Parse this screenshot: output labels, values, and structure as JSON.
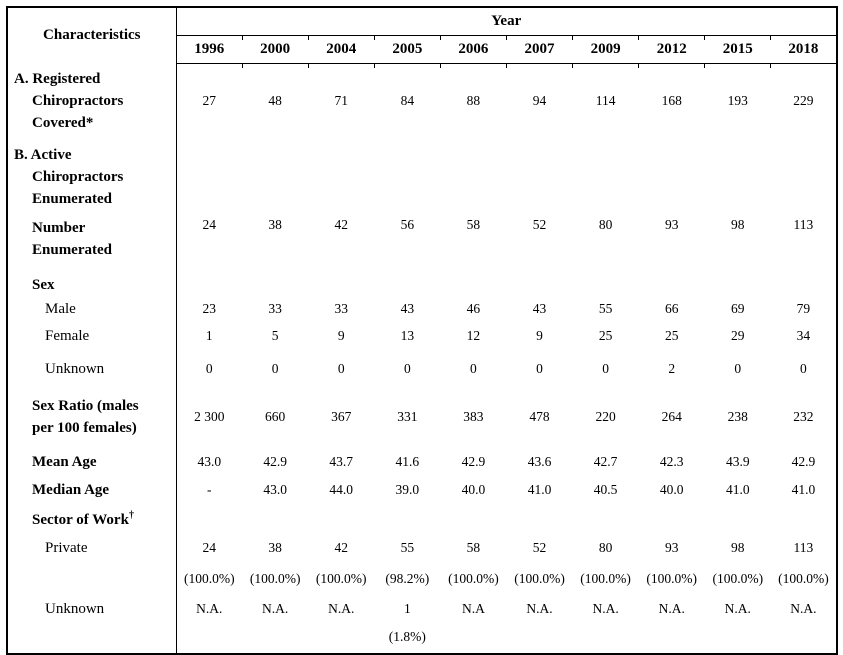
{
  "page": {
    "background_color": "#ffffff",
    "border_color": "#000000",
    "text_color": "#000000"
  },
  "table": {
    "characteristics_header": "Characteristics",
    "year_header": "Year",
    "years": [
      "1996",
      "2000",
      "2004",
      "2005",
      "2006",
      "2007",
      "2009",
      "2012",
      "2015",
      "2018"
    ],
    "rows": [
      {
        "id": "registered",
        "style": "section",
        "level": 0,
        "label_lines": [
          "A. Registered",
          "Chiropractors",
          "Covered*"
        ],
        "values": [
          "27",
          "48",
          "71",
          "84",
          "88",
          "94",
          "114",
          "168",
          "193",
          "229"
        ]
      },
      {
        "id": "active-header",
        "style": "section",
        "level": 0,
        "label_lines": [
          "B. Active",
          "Chiropractors",
          "Enumerated"
        ],
        "values": [
          "",
          "",
          "",
          "",
          "",
          "",
          "",
          "",
          "",
          ""
        ]
      },
      {
        "id": "number-enumerated",
        "style": "section",
        "level": 1,
        "label_lines": [
          "Number",
          "Enumerated"
        ],
        "values": [
          "24",
          "38",
          "42",
          "56",
          "58",
          "52",
          "80",
          "93",
          "98",
          "113"
        ]
      },
      {
        "id": "sex-header",
        "style": "section",
        "level": 1,
        "label_lines": [
          "Sex"
        ],
        "values": [
          "",
          "",
          "",
          "",
          "",
          "",
          "",
          "",
          "",
          ""
        ]
      },
      {
        "id": "male",
        "style": "item",
        "level": 2,
        "label_lines": [
          "Male"
        ],
        "values": [
          "23",
          "33",
          "33",
          "43",
          "46",
          "43",
          "55",
          "66",
          "69",
          "79"
        ]
      },
      {
        "id": "female",
        "style": "item",
        "level": 2,
        "label_lines": [
          "Female"
        ],
        "values": [
          "1",
          "5",
          "9",
          "13",
          "12",
          "9",
          "25",
          "25",
          "29",
          "34"
        ]
      },
      {
        "id": "sex-unknown",
        "style": "item",
        "level": 2,
        "label_lines": [
          "Unknown"
        ],
        "values": [
          "0",
          "0",
          "0",
          "0",
          "0",
          "0",
          "0",
          "2",
          "0",
          "0"
        ]
      },
      {
        "id": "sex-ratio",
        "style": "section",
        "level": 1,
        "label_lines": [
          "Sex Ratio (males",
          "per 100 females)"
        ],
        "values": [
          "2 300",
          "660",
          "367",
          "331",
          "383",
          "478",
          "220",
          "264",
          "238",
          "232"
        ]
      },
      {
        "id": "mean-age",
        "style": "section",
        "level": 1,
        "label_lines": [
          "Mean Age"
        ],
        "values": [
          "43.0",
          "42.9",
          "43.7",
          "41.6",
          "42.9",
          "43.6",
          "42.7",
          "42.3",
          "43.9",
          "42.9"
        ]
      },
      {
        "id": "median-age",
        "style": "section",
        "level": 1,
        "label_lines": [
          "Median Age"
        ],
        "values": [
          "-",
          "43.0",
          "44.0",
          "39.0",
          "40.0",
          "41.0",
          "40.5",
          "40.0",
          "41.0",
          "41.0"
        ]
      },
      {
        "id": "sector-header",
        "style": "section",
        "level": 1,
        "label_lines": [
          "Sector of Work"
        ],
        "sup": "†",
        "values": [
          "",
          "",
          "",
          "",
          "",
          "",
          "",
          "",
          "",
          ""
        ]
      },
      {
        "id": "private",
        "style": "item",
        "level": 2,
        "label_lines": [
          "Private"
        ],
        "values": [
          "24",
          "38",
          "42",
          "55",
          "58",
          "52",
          "80",
          "93",
          "98",
          "113"
        ]
      },
      {
        "id": "private-pct",
        "style": "item",
        "level": 2,
        "label_lines": [],
        "values": [
          "(100.0%)",
          "(100.0%)",
          "(100.0%)",
          "(98.2%)",
          "(100.0%)",
          "(100.0%)",
          "(100.0%)",
          "(100.0%)",
          "(100.0%)",
          "(100.0%)"
        ]
      },
      {
        "id": "sector-unknown",
        "style": "item",
        "level": 2,
        "label_lines": [
          "Unknown"
        ],
        "values": [
          "N.A.",
          "N.A.",
          "N.A.",
          "1",
          "N.A",
          "N.A.",
          "N.A.",
          "N.A.",
          "N.A.",
          "N.A."
        ]
      },
      {
        "id": "sector-unknown-pct",
        "style": "item",
        "level": 2,
        "label_lines": [],
        "values": [
          "",
          "",
          "",
          "(1.8%)",
          "",
          "",
          "",
          "",
          "",
          ""
        ]
      }
    ]
  }
}
